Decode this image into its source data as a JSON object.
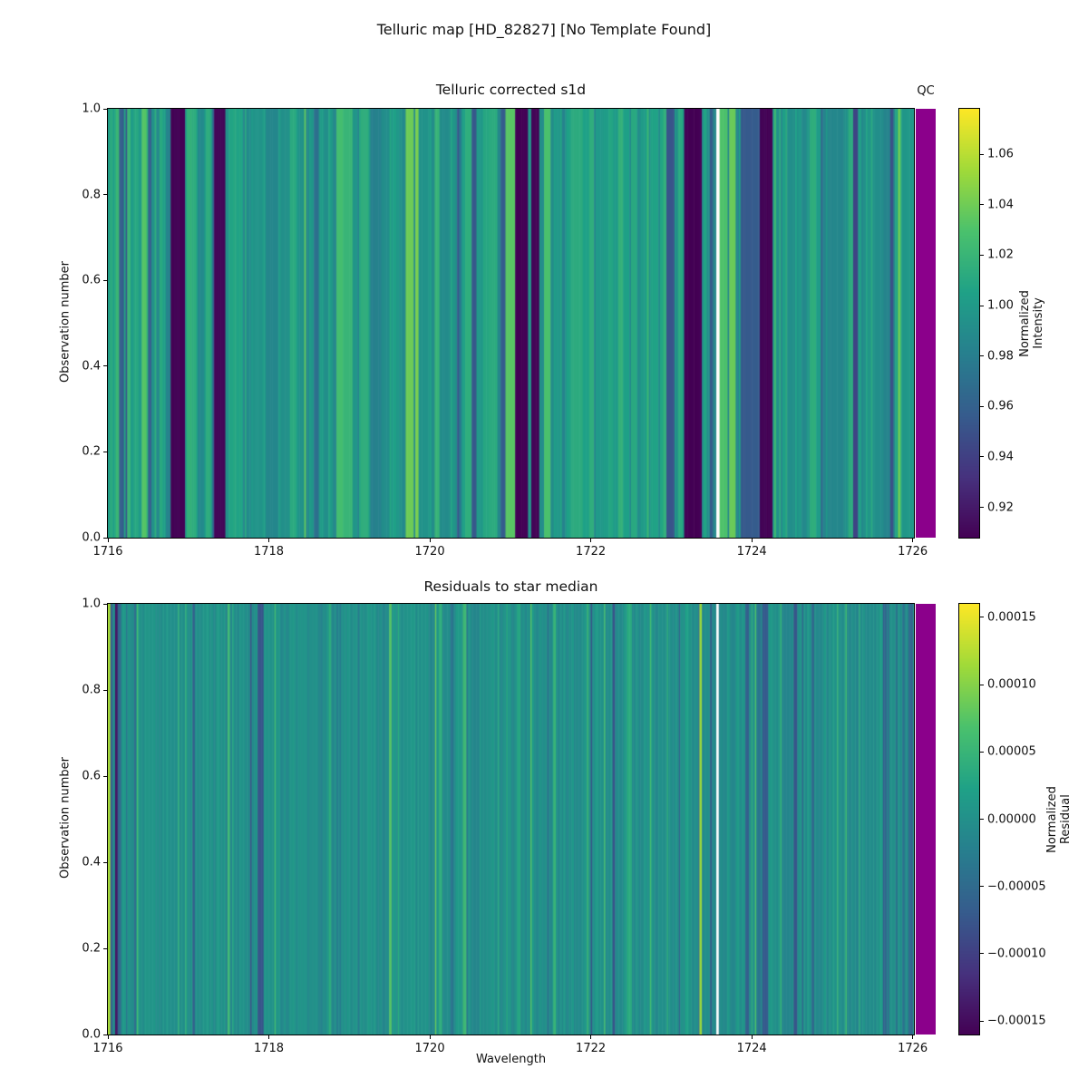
{
  "figure": {
    "suptitle": "Telluric map [HD_82827] [No Template Found]"
  },
  "colors": {
    "background": "#ffffff",
    "qc_strip": "#8B008B",
    "masked": "#ffffff",
    "axis_text": "#111111",
    "viridis_stops": [
      "#440154",
      "#46327e",
      "#365c8d",
      "#277f8e",
      "#1fa187",
      "#4ac16d",
      "#a0da39",
      "#fde725"
    ]
  },
  "chart_data": [
    {
      "type": "heatmap",
      "title": "Telluric corrected s1d",
      "xlabel": "",
      "ylabel": "Observation number",
      "xlim": [
        1716.0,
        1726.015
      ],
      "ylim": [
        0.0,
        1.0
      ],
      "grid": false,
      "x_ticks": [
        {
          "label": "1716",
          "value": 1716
        },
        {
          "label": "1718",
          "value": 1718
        },
        {
          "label": "1720",
          "value": 1720
        },
        {
          "label": "1722",
          "value": 1722
        },
        {
          "label": "1724",
          "value": 1724
        },
        {
          "label": "1726",
          "value": 1726
        }
      ],
      "y_ticks": [
        {
          "label": "0.0",
          "value": 0.0
        },
        {
          "label": "0.2",
          "value": 0.2
        },
        {
          "label": "0.4",
          "value": 0.4
        },
        {
          "label": "0.6",
          "value": 0.6
        },
        {
          "label": "0.8",
          "value": 0.8
        },
        {
          "label": "1.0",
          "value": 1.0
        }
      ],
      "qc_label": "QC",
      "colorbar": {
        "label_lines": [
          "Normalized",
          "Intensity"
        ],
        "colormap": "viridis",
        "vmin": 0.908,
        "vmax": 1.078,
        "ticks": [
          {
            "label": "1.06",
            "value": 1.06
          },
          {
            "label": "1.04",
            "value": 1.04
          },
          {
            "label": "1.02",
            "value": 1.02
          },
          {
            "label": "1.00",
            "value": 1.0
          },
          {
            "label": "0.98",
            "value": 0.98
          },
          {
            "label": "0.96",
            "value": 0.96
          },
          {
            "label": "0.94",
            "value": 0.94
          },
          {
            "label": "0.92",
            "value": 0.92
          }
        ]
      },
      "texture": {
        "base": 1.0,
        "noise_amplitude": 0.016,
        "column_width": 0.02,
        "seed": 11,
        "persistence": 0.45,
        "dip_prob": 0.08,
        "dip_depth": 0.03,
        "bright_prob": 0.13,
        "bright_height": 0.022
      },
      "bands": [
        [
          1716.14,
          1716.2,
          0.958
        ],
        [
          1716.78,
          1716.96,
          0.909
        ],
        [
          1717.33,
          1717.47,
          0.91
        ],
        [
          1720.52,
          1720.58,
          0.955
        ],
        [
          1721.07,
          1721.22,
          0.909
        ],
        [
          1721.26,
          1721.37,
          0.91
        ],
        [
          1722.95,
          1723.05,
          0.952
        ],
        [
          1723.17,
          1723.39,
          0.908
        ],
        [
          1723.61,
          1723.7,
          1.03
        ],
        [
          1723.72,
          1723.8,
          1.038
        ],
        [
          1723.86,
          1724.11,
          0.956
        ],
        [
          1724.11,
          1724.27,
          0.909
        ]
      ],
      "masked_regions": [
        [
          1723.555,
          1723.592
        ]
      ]
    },
    {
      "type": "heatmap",
      "title": "Residuals to star median",
      "xlabel": "Wavelength",
      "ylabel": "Observation number",
      "xlim": [
        1716.0,
        1726.015
      ],
      "ylim": [
        0.0,
        1.0
      ],
      "grid": false,
      "x_ticks": [
        {
          "label": "1716",
          "value": 1716
        },
        {
          "label": "1718",
          "value": 1718
        },
        {
          "label": "1720",
          "value": 1720
        },
        {
          "label": "1722",
          "value": 1722
        },
        {
          "label": "1724",
          "value": 1724
        },
        {
          "label": "1726",
          "value": 1726
        }
      ],
      "y_ticks": [
        {
          "label": "0.0",
          "value": 0.0
        },
        {
          "label": "0.2",
          "value": 0.2
        },
        {
          "label": "0.4",
          "value": 0.4
        },
        {
          "label": "0.6",
          "value": 0.6
        },
        {
          "label": "0.8",
          "value": 0.8
        },
        {
          "label": "1.0",
          "value": 1.0
        }
      ],
      "colorbar": {
        "label_lines": [
          "Normalized",
          "Residual"
        ],
        "colormap": "viridis",
        "vmin": -0.00016,
        "vmax": 0.00016,
        "ticks": [
          {
            "label": "0.00015",
            "value": 0.00015
          },
          {
            "label": "0.00010",
            "value": 0.0001
          },
          {
            "label": "0.00005",
            "value": 5e-05
          },
          {
            "label": "0.00000",
            "value": 0.0
          },
          {
            "label": "−0.00005",
            "value": -5e-05
          },
          {
            "label": "−0.00010",
            "value": -0.0001
          },
          {
            "label": "−0.00015",
            "value": -0.00015
          }
        ]
      },
      "texture": {
        "base": 0.0,
        "noise_amplitude": 1.5e-05,
        "column_width": 0.015,
        "seed": 7,
        "persistence": 0.35,
        "dip_prob": 0.06,
        "dip_depth": 5e-05,
        "bright_prob": 0.08,
        "bright_height": 5e-05
      },
      "bands": [
        [
          1716.0,
          1716.025,
          0.00012
        ],
        [
          1716.03,
          1716.06,
          -6e-05
        ],
        [
          1716.09,
          1716.115,
          -0.000145
        ],
        [
          1716.12,
          1716.16,
          -5e-05
        ],
        [
          1717.05,
          1717.08,
          -6e-05
        ],
        [
          1723.355,
          1723.385,
          0.00011
        ],
        [
          1723.92,
          1723.97,
          -6e-05
        ],
        [
          1724.13,
          1724.2,
          -7e-05
        ],
        [
          1725.95,
          1726.0,
          -5e-05
        ]
      ],
      "masked_regions": [
        [
          1723.555,
          1723.592
        ]
      ]
    }
  ]
}
